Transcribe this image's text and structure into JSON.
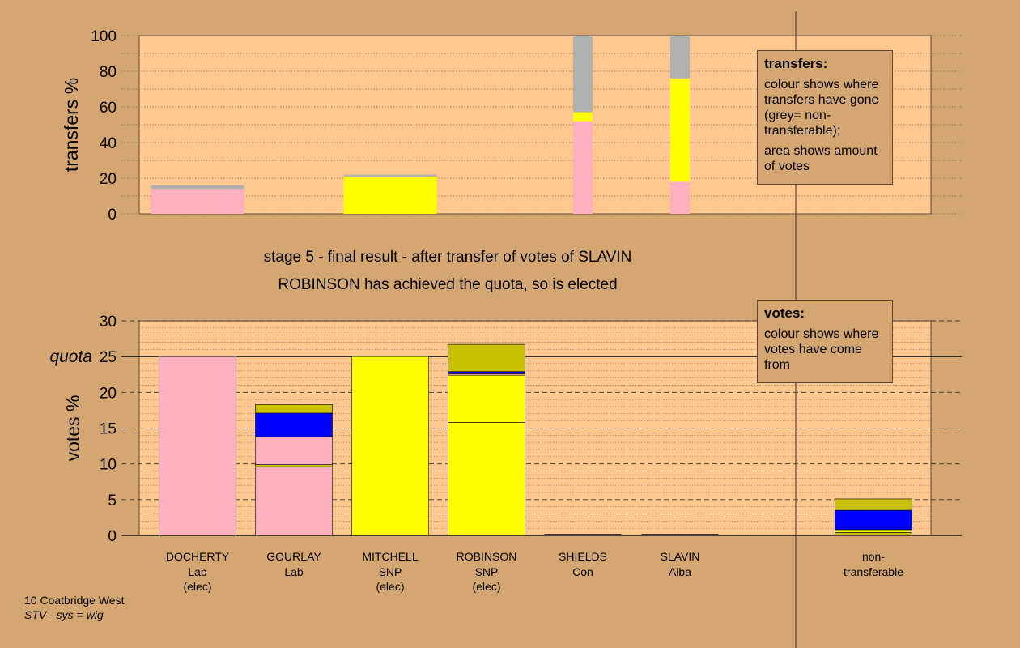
{
  "chart_data": [
    {
      "type": "bar",
      "name": "transfers",
      "ylabel": "transfers %",
      "ylim": [
        0,
        100
      ],
      "yticks": [
        0,
        20,
        40,
        60,
        80,
        100
      ],
      "categories": [
        "DOCHERTY",
        "GOURLAY",
        "MITCHELL",
        "ROBINSON",
        "SHIELDS",
        "SLAVIN"
      ],
      "segments": [
        {
          "candidate": "DOCHERTY",
          "stack": [
            {
              "color": "#ffb0c0",
              "value": 14
            },
            {
              "color": "#b0b0b0",
              "value": 2
            }
          ]
        },
        {
          "candidate": "GOURLAY",
          "stack": []
        },
        {
          "candidate": "MITCHELL",
          "stack": [
            {
              "color": "#ffff00",
              "value": 21
            },
            {
              "color": "#b0b0b0",
              "value": 1
            }
          ]
        },
        {
          "candidate": "ROBINSON",
          "stack": []
        },
        {
          "candidate": "SHIELDS",
          "stack": [
            {
              "color": "#ffb0c0",
              "value": 52
            },
            {
              "color": "#ffff00",
              "value": 5
            },
            {
              "color": "#b0b0b0",
              "value": 43
            }
          ]
        },
        {
          "candidate": "SLAVIN",
          "stack": [
            {
              "color": "#ffb0c0",
              "value": 18
            },
            {
              "color": "#ffff00",
              "value": 58
            },
            {
              "color": "#b0b0b0",
              "value": 24
            }
          ]
        }
      ]
    },
    {
      "type": "bar",
      "name": "votes",
      "ylabel": "votes %",
      "ylim": [
        0,
        30
      ],
      "yticks": [
        0,
        5,
        10,
        15,
        20,
        25,
        30
      ],
      "quota": 25,
      "quota_label": "quota",
      "candidates": [
        {
          "name": "DOCHERTY",
          "party": "Lab",
          "status": "(elec)",
          "stack": [
            {
              "color": "#ffb0c0",
              "value": 25
            }
          ]
        },
        {
          "name": "GOURLAY",
          "party": "Lab",
          "status": "",
          "stack": [
            {
              "color": "#ffb0c0",
              "value": 9.6
            },
            {
              "color": "#c8c000",
              "value": 0.3
            },
            {
              "color": "#ffb0c0",
              "value": 3.9
            },
            {
              "color": "#0000ff",
              "value": 3.3
            },
            {
              "color": "#c8c000",
              "value": 1.2
            }
          ]
        },
        {
          "name": "MITCHELL",
          "party": "SNP",
          "status": "(elec)",
          "stack": [
            {
              "color": "#ffff00",
              "value": 25
            }
          ]
        },
        {
          "name": "ROBINSON",
          "party": "SNP",
          "status": "(elec)",
          "stack": [
            {
              "color": "#ffff00",
              "value": 15.8
            },
            {
              "color": "#ffff00",
              "value": 6.6
            },
            {
              "color": "#ffb0c0",
              "value": 0.2
            },
            {
              "color": "#0000ff",
              "value": 0.3
            },
            {
              "color": "#c8c000",
              "value": 3.8
            }
          ]
        },
        {
          "name": "SHIELDS",
          "party": "Con",
          "status": "",
          "stack": []
        },
        {
          "name": "SLAVIN",
          "party": "Alba",
          "status": "",
          "stack": []
        },
        {
          "name": "non-transferable",
          "party": "",
          "status": "",
          "stack": [
            {
              "color": "#c8c000",
              "value": 0.4
            },
            {
              "color": "#ffff00",
              "value": 0.4
            },
            {
              "color": "#0000ff",
              "value": 2.7
            },
            {
              "color": "#c8c000",
              "value": 1.6
            }
          ]
        }
      ]
    }
  ],
  "stage_title": "stage 5 - final result - after transfer of votes of SLAVIN",
  "result_text": "ROBINSON has achieved the quota, so is elected",
  "legend_transfers": {
    "heading": "transfers:",
    "line1": "colour shows where transfers have gone (grey= non-transferable);",
    "line2": "area shows amount of votes"
  },
  "legend_votes": {
    "heading": "votes:",
    "line1": "colour shows where votes have come from"
  },
  "nontransferable_label_1": "non-",
  "nontransferable_label_2": "transferable",
  "footer": {
    "ward": "10 Coatbridge West",
    "system": "STV - sys = wig"
  }
}
